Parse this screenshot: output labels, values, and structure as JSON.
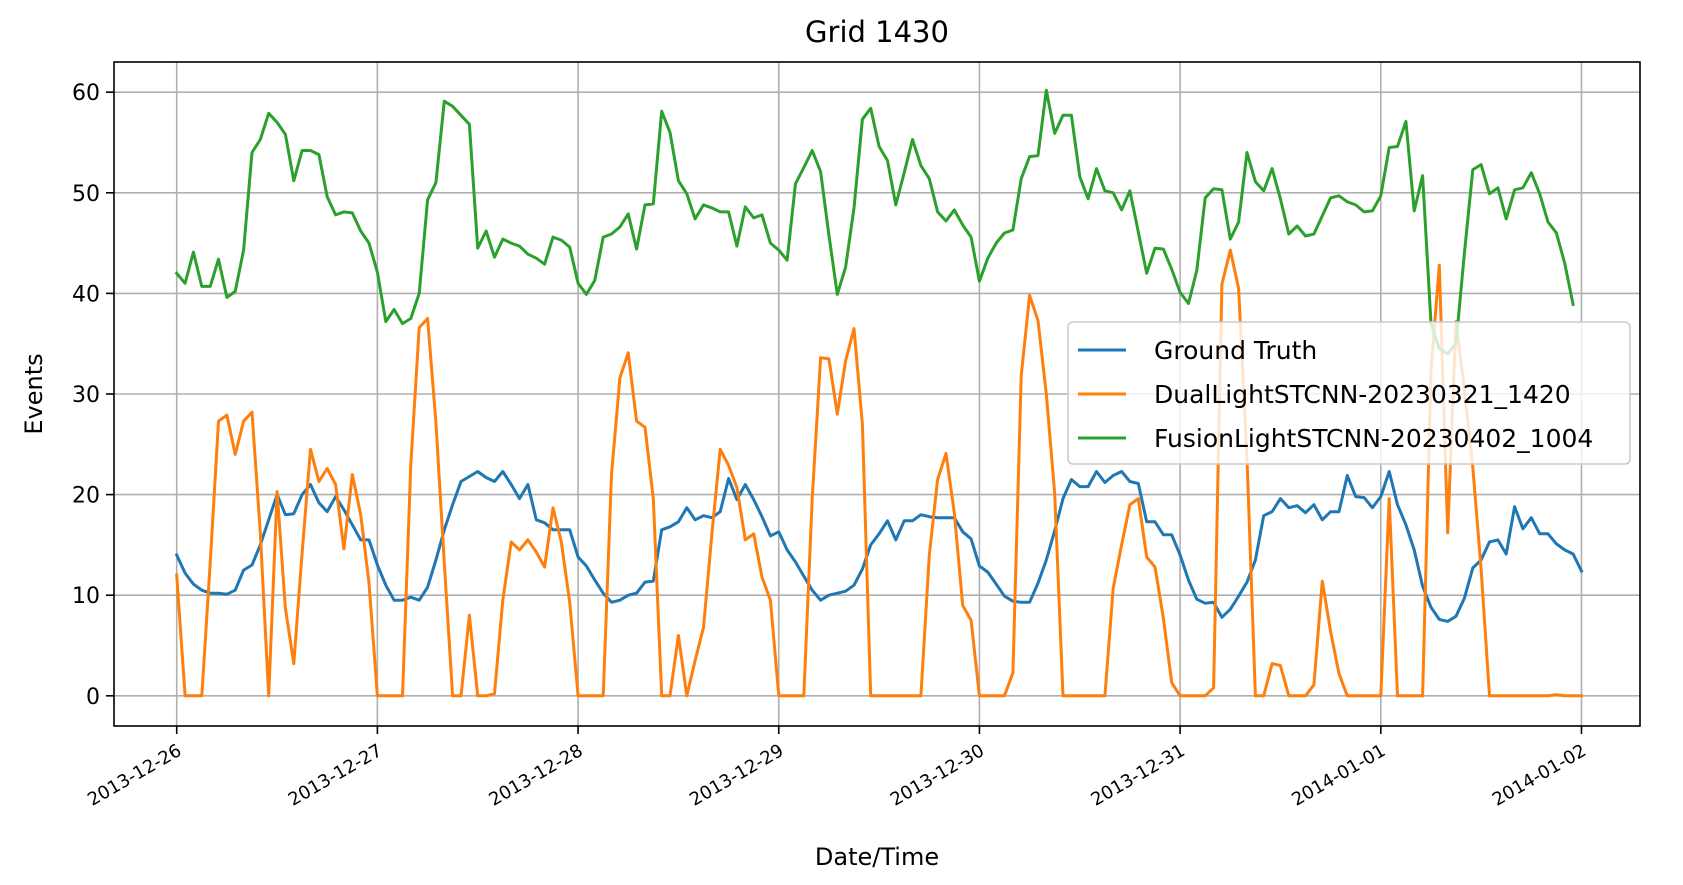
{
  "chart_data": {
    "type": "line",
    "title": "Grid 1430",
    "xlabel": "Date/Time",
    "ylabel": "Events",
    "xlim": [
      "2013-12-25T16:30",
      "2014-01-02T07:00"
    ],
    "ylim": [
      -3,
      63
    ],
    "yticks": [
      0,
      10,
      20,
      30,
      40,
      50,
      60
    ],
    "xticks": [
      "2013-12-26",
      "2013-12-27",
      "2013-12-28",
      "2013-12-29",
      "2013-12-30",
      "2013-12-31",
      "2014-01-01",
      "2014-01-02"
    ],
    "grid": true,
    "legend": "center-right",
    "x_start": "2013-12-26T00:00",
    "x_step_hours": 1,
    "series": [
      {
        "name": "Ground Truth",
        "color": "#1f77b4",
        "values": [
          14.0,
          12.2,
          11.1,
          10.5,
          10.2,
          10.2,
          10.1,
          10.5,
          12.5,
          13.0,
          15.0,
          17.5,
          20.0,
          18.0,
          18.1,
          20.0,
          21.0,
          19.2,
          18.3,
          19.8,
          18.5,
          17.0,
          15.5,
          15.5,
          13.0,
          11.0,
          9.5,
          9.5,
          9.8,
          9.5,
          10.8,
          13.5,
          16.5,
          19.0,
          21.3,
          21.8,
          22.3,
          21.7,
          21.3,
          22.3,
          21.0,
          19.6,
          21.0,
          17.5,
          17.2,
          16.5,
          16.5,
          16.5,
          13.8,
          12.9,
          11.5,
          10.2,
          9.3,
          9.5,
          10.0,
          10.2,
          11.3,
          11.4,
          16.5,
          16.8,
          17.3,
          18.7,
          17.5,
          17.9,
          17.7,
          18.3,
          21.6,
          19.5,
          21.0,
          19.5,
          17.8,
          15.9,
          16.3,
          14.5,
          13.3,
          11.9,
          10.5,
          9.5,
          10.0,
          10.2,
          10.4,
          11.0,
          12.6,
          15.0,
          16.1,
          17.4,
          15.5,
          17.4,
          17.4,
          18.0,
          17.8,
          17.7,
          17.7,
          17.7,
          16.3,
          15.6,
          12.9,
          12.3,
          11.1,
          9.9,
          9.4,
          9.3,
          9.3,
          11.2,
          13.5,
          16.4,
          19.6,
          21.5,
          20.8,
          20.8,
          22.3,
          21.2,
          21.9,
          22.3,
          21.3,
          21.1,
          17.3,
          17.3,
          16.0,
          16.0,
          14.0,
          11.5,
          9.6,
          9.2,
          9.3,
          7.8,
          8.6,
          9.9,
          11.3,
          13.5,
          17.9,
          18.3,
          19.6,
          18.7,
          18.9,
          18.2,
          19.0,
          17.5,
          18.3,
          18.3,
          21.9,
          19.8,
          19.7,
          18.7,
          19.8,
          22.3,
          19.0,
          17.0,
          14.5,
          10.9,
          8.8,
          7.6,
          7.4,
          7.9,
          9.7,
          12.7,
          13.5,
          15.3,
          15.5,
          14.1,
          18.8,
          16.6,
          17.7,
          16.1,
          16.1,
          15.1,
          14.5,
          14.1,
          12.4
        ]
      },
      {
        "name": "DualLightSTCNN-20230321_1420",
        "color": "#ff7f0e",
        "values": [
          12.0,
          0.0,
          0.0,
          0.0,
          13.2,
          27.3,
          27.9,
          24.0,
          27.3,
          28.2,
          16.2,
          0.0,
          20.3,
          8.7,
          3.2,
          14.2,
          24.5,
          21.3,
          22.6,
          21.0,
          14.6,
          22.0,
          18.0,
          11.2,
          0.0,
          0.0,
          0.0,
          0.0,
          23.0,
          36.6,
          37.5,
          27.2,
          13.2,
          0.0,
          0.0,
          8.0,
          0.0,
          0.0,
          0.2,
          9.5,
          15.3,
          14.5,
          15.5,
          14.3,
          12.8,
          18.7,
          15.3,
          9.3,
          0.0,
          0.0,
          0.0,
          0.0,
          22.0,
          31.6,
          34.1,
          27.3,
          26.7,
          19.6,
          0.0,
          0.0,
          6.0,
          0.0,
          3.5,
          6.8,
          16.1,
          24.5,
          22.9,
          20.7,
          15.5,
          16.1,
          11.8,
          9.5,
          0.0,
          0.0,
          0.0,
          0.0,
          19.6,
          33.6,
          33.5,
          28.0,
          33.3,
          36.5,
          27.0,
          0.0,
          0.0,
          0.0,
          0.0,
          0.0,
          0.0,
          0.0,
          14.0,
          21.5,
          24.1,
          18.2,
          9.0,
          7.5,
          0.0,
          0.0,
          0.0,
          0.0,
          2.3,
          31.8,
          39.8,
          37.3,
          30.0,
          20.1,
          0.0,
          0.0,
          0.0,
          0.0,
          0.0,
          0.0,
          10.7,
          15.0,
          19.0,
          19.6,
          13.8,
          12.8,
          7.7,
          1.3,
          0.0,
          0.0,
          0.0,
          0.0,
          0.8,
          40.9,
          44.3,
          40.5,
          23.6,
          0.0,
          0.0,
          3.2,
          3.0,
          0.0,
          0.0,
          0.0,
          1.1,
          11.4,
          6.4,
          2.2,
          0.0,
          0.0,
          0.0,
          0.0,
          0.0,
          19.6,
          0.0,
          0.0,
          0.0,
          0.0,
          32.4,
          42.8,
          16.2,
          37.2,
          30.4,
          22.7,
          12.6,
          0.0,
          0.0,
          0.0,
          0.0,
          0.0,
          0.0,
          0.0,
          0.0,
          0.1,
          0.0,
          0.0,
          0.0
        ]
      },
      {
        "name": "FusionLightSTCNN-20230402_1004",
        "color": "#2ca02c",
        "values": [
          42.0,
          41.0,
          44.1,
          40.7,
          40.7,
          43.4,
          39.6,
          40.2,
          44.3,
          54.0,
          55.3,
          57.9,
          57.0,
          55.8,
          51.2,
          54.2,
          54.2,
          53.8,
          49.6,
          47.8,
          48.1,
          48.0,
          46.2,
          45.0,
          42.1,
          37.2,
          38.4,
          37.0,
          37.5,
          40.0,
          49.3,
          51.0,
          59.1,
          58.6,
          57.7,
          56.8,
          44.5,
          46.2,
          43.6,
          45.4,
          45.0,
          44.7,
          43.9,
          43.5,
          42.9,
          45.6,
          45.3,
          44.6,
          41.0,
          39.9,
          41.3,
          45.6,
          45.9,
          46.6,
          47.9,
          44.4,
          48.8,
          48.9,
          58.1,
          56.0,
          51.2,
          49.9,
          47.4,
          48.8,
          48.5,
          48.1,
          48.1,
          44.7,
          48.6,
          47.5,
          47.8,
          45.0,
          44.3,
          43.3,
          50.9,
          52.5,
          54.2,
          52.1,
          45.8,
          39.9,
          42.6,
          48.5,
          57.3,
          58.4,
          54.6,
          53.2,
          48.8,
          52.0,
          55.3,
          52.7,
          51.4,
          48.1,
          47.2,
          48.3,
          46.8,
          45.6,
          41.2,
          43.5,
          45.0,
          46.0,
          46.3,
          51.4,
          53.6,
          53.7,
          60.2,
          55.9,
          57.7,
          57.7,
          51.6,
          49.4,
          52.4,
          50.2,
          50.0,
          48.3,
          50.2,
          46.1,
          42.0,
          44.5,
          44.4,
          42.4,
          40.1,
          39.0,
          42.3,
          49.5,
          50.4,
          50.3,
          45.4,
          47.1,
          54.0,
          51.1,
          50.2,
          52.4,
          49.4,
          45.9,
          46.7,
          45.7,
          45.9,
          47.7,
          49.5,
          49.7,
          49.1,
          48.8,
          48.1,
          48.2,
          49.7,
          54.5,
          54.6,
          57.1,
          48.2,
          51.7,
          37.0,
          34.5,
          34.0,
          35.0,
          44.0,
          52.3,
          52.8,
          49.9,
          50.5,
          47.4,
          50.3,
          50.5,
          52.0,
          49.9,
          47.1,
          46.0,
          43.0,
          38.9
        ]
      }
    ]
  }
}
